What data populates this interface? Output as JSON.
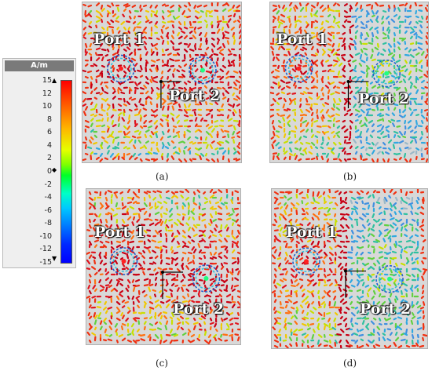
{
  "legend": {
    "unit": "A/m",
    "ticks": [
      "15",
      "12",
      "10",
      "8",
      "6",
      "4",
      "2",
      "0",
      "-2",
      "-4",
      "-6",
      "-8",
      "-10",
      "-12",
      "-15"
    ]
  },
  "panels": [
    {
      "caption": "(a)",
      "port1": "Port 1",
      "port2": "Port 2"
    },
    {
      "caption": "(b)",
      "port1": "Port 1",
      "port2": "Port 2"
    },
    {
      "caption": "(c)",
      "port1": "Port 1",
      "port2": "Port 2"
    },
    {
      "caption": "(d)",
      "port1": "Port 1",
      "port2": "Port 2"
    }
  ],
  "colors": {
    "high": "#d0101a",
    "mid": "#f0d000",
    "low": "#30a8e0"
  }
}
